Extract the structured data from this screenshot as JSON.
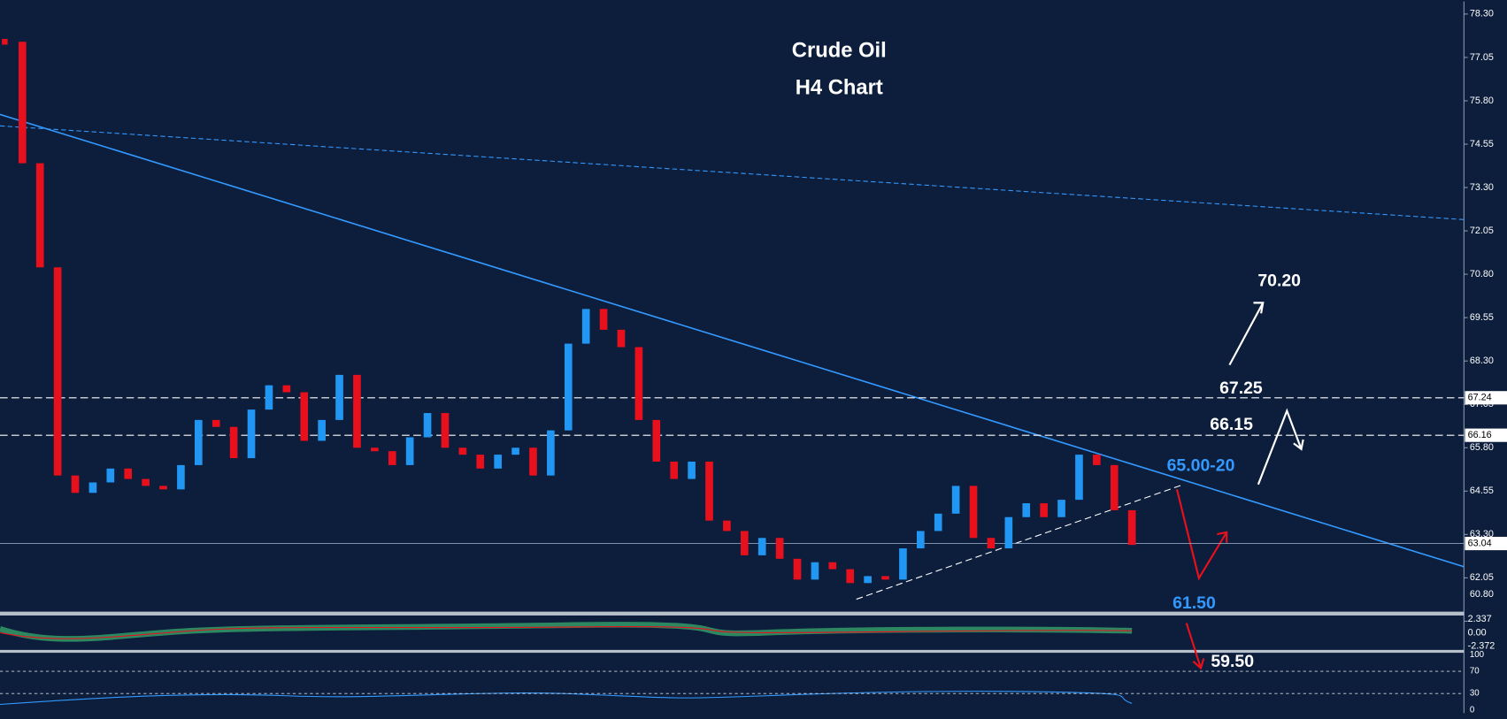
{
  "chart_data": {
    "type": "candlestick",
    "title": "Crude Oil",
    "subtitle": "H4 Chart",
    "series": [
      {
        "name": "Crude Oil",
        "up_color": "#2196f3",
        "down_color": "#e8101c",
        "values": [
          77.5,
          74.0,
          71.0,
          65.0,
          64.5,
          64.8,
          65.2,
          64.9,
          64.7,
          64.6,
          65.3,
          66.6,
          66.4,
          65.5,
          66.9,
          67.6,
          67.4,
          66.0,
          66.6,
          67.9,
          65.8,
          65.7,
          65.3,
          66.1,
          66.8,
          65.8,
          65.6,
          65.2,
          65.6,
          65.8,
          65.0,
          66.3,
          68.8,
          69.8,
          69.2,
          68.7,
          66.6,
          65.4,
          64.9,
          65.4,
          63.7,
          63.4,
          62.7,
          63.2,
          62.6,
          62.0,
          62.5,
          62.3,
          61.9,
          62.1,
          62.0,
          62.9,
          63.4,
          63.9,
          64.7,
          63.2,
          62.9,
          63.8,
          64.2,
          63.8,
          64.3,
          65.6,
          65.3,
          64.0,
          63.0
        ]
      }
    ],
    "ylim": [
      60.8,
      78.66
    ],
    "yticks": [
      {
        "value": 78.3,
        "label": "78.30"
      },
      {
        "value": 77.05,
        "label": "77.05"
      },
      {
        "value": 75.8,
        "label": "75.80"
      },
      {
        "value": 74.55,
        "label": "74.55"
      },
      {
        "value": 73.3,
        "label": "73.30"
      },
      {
        "value": 72.05,
        "label": "72.05"
      },
      {
        "value": 70.8,
        "label": "70.80"
      },
      {
        "value": 69.55,
        "label": "69.55"
      },
      {
        "value": 68.3,
        "label": "68.30"
      },
      {
        "value": 67.05,
        "label": "67.05"
      },
      {
        "value": 65.8,
        "label": "65.80"
      },
      {
        "value": 64.55,
        "label": "64.55"
      },
      {
        "value": 63.3,
        "label": "63.30"
      },
      {
        "value": 62.05,
        "label": "62.05"
      },
      {
        "value": 60.8,
        "label": "60.80"
      }
    ],
    "levels": [
      {
        "value": 67.24,
        "label": "67.24"
      },
      {
        "value": 66.16,
        "label": "66.16"
      }
    ],
    "last_price": {
      "value": 63.04,
      "label": "63.04"
    },
    "annotations": [
      {
        "text": "70.20",
        "color": "#ffffff"
      },
      {
        "text": "67.25",
        "color": "#ffffff"
      },
      {
        "text": "66.15",
        "color": "#ffffff"
      },
      {
        "text": "65.00-20",
        "color": "#3399ff"
      },
      {
        "text": "61.50",
        "color": "#3399ff"
      },
      {
        "text": "59.50",
        "color": "#ffffff"
      }
    ],
    "macd_ticks": [
      {
        "value": 2.337,
        "label": "2.337"
      },
      {
        "value": 0,
        "label": "0.00"
      },
      {
        "value": -2.372,
        "label": "-2.372"
      }
    ],
    "rsi_ticks": [
      100,
      70,
      30,
      0
    ]
  }
}
